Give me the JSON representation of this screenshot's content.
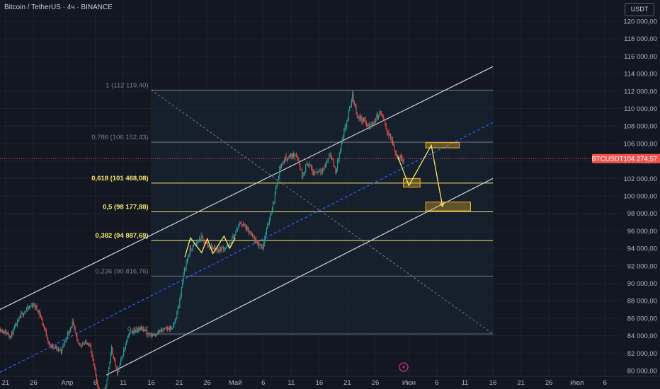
{
  "header": {
    "title": "Bitcoin / TetherUS · 4ч · BINANCE",
    "currency_button": "USDT"
  },
  "colors": {
    "background": "#131722",
    "up": "#26a69a",
    "down": "#ef5350",
    "channel": "#d1d4dc",
    "midline": "#2962ff",
    "fib_gray": "#787b86",
    "fib_yellow": "#f5e86b",
    "zone": "#f0b429",
    "price_tag": "#ef5350"
  },
  "chart_data": {
    "type": "candlestick",
    "symbol": "BTCUSDT",
    "timeframe": "4ч",
    "y_unit": "USDT",
    "ylim": [
      79800,
      121000
    ],
    "y_ticks": [
      80000,
      82000,
      84000,
      86000,
      88000,
      90000,
      92000,
      94000,
      96000,
      98000,
      100000,
      102000,
      104000,
      106000,
      108000,
      110000,
      112000,
      114000,
      116000,
      118000,
      120000
    ],
    "y_tick_labels": [
      "80 000,00",
      "82 000,00",
      "84 000,00",
      "86 000,00",
      "88 000,00",
      "90 000,00",
      "92 000,00",
      "94 000,00",
      "96 000,00",
      "98 000,00",
      "100 000,00",
      "102 000,00",
      "104 000,00",
      "106 000,00",
      "108 000,00",
      "110 000,00",
      "112 000,00",
      "114 000,00",
      "116 000,00",
      "118 000,00",
      "120 000,00"
    ],
    "x_range": [
      "2025-03-20",
      "2025-07-09"
    ],
    "x_ticks": [
      {
        "date": "2025-03-21",
        "label": "21"
      },
      {
        "date": "2025-03-26",
        "label": "26"
      },
      {
        "date": "2025-04-01",
        "label": "Апр"
      },
      {
        "date": "2025-04-06",
        "label": "6"
      },
      {
        "date": "2025-04-11",
        "label": "11"
      },
      {
        "date": "2025-04-16",
        "label": "16"
      },
      {
        "date": "2025-04-21",
        "label": "21"
      },
      {
        "date": "2025-04-26",
        "label": "26"
      },
      {
        "date": "2025-05-01",
        "label": "Май"
      },
      {
        "date": "2025-05-06",
        "label": "6"
      },
      {
        "date": "2025-05-11",
        "label": "11"
      },
      {
        "date": "2025-05-16",
        "label": "16"
      },
      {
        "date": "2025-05-21",
        "label": "21"
      },
      {
        "date": "2025-05-26",
        "label": "26"
      },
      {
        "date": "2025-06-01",
        "label": "Июн"
      },
      {
        "date": "2025-06-06",
        "label": "6"
      },
      {
        "date": "2025-06-11",
        "label": "11"
      },
      {
        "date": "2025-06-16",
        "label": "16"
      },
      {
        "date": "2025-06-21",
        "label": "21"
      },
      {
        "date": "2025-06-26",
        "label": "26"
      },
      {
        "date": "2025-07-01",
        "label": "Июл"
      },
      {
        "date": "2025-07-06",
        "label": "6"
      }
    ],
    "price_path": [
      [
        "2025-03-20",
        84800
      ],
      [
        "2025-03-22",
        84000
      ],
      [
        "2025-03-24",
        86500
      ],
      [
        "2025-03-26",
        87600
      ],
      [
        "2025-03-27",
        86800
      ],
      [
        "2025-03-29",
        82800
      ],
      [
        "2025-03-31",
        82300
      ],
      [
        "2025-04-02",
        85500
      ],
      [
        "2025-04-03",
        83000
      ],
      [
        "2025-04-05",
        83200
      ],
      [
        "2025-04-07",
        76800
      ],
      [
        "2025-04-08",
        78200
      ],
      [
        "2025-04-09",
        82500
      ],
      [
        "2025-04-10",
        79600
      ],
      [
        "2025-04-12",
        84200
      ],
      [
        "2025-04-14",
        84900
      ],
      [
        "2025-04-16",
        84000
      ],
      [
        "2025-04-18",
        84600
      ],
      [
        "2025-04-20",
        85000
      ],
      [
        "2025-04-21",
        87400
      ],
      [
        "2025-04-22",
        91600
      ],
      [
        "2025-04-23",
        93800
      ],
      [
        "2025-04-25",
        95200
      ],
      [
        "2025-04-26",
        94400
      ],
      [
        "2025-04-28",
        93800
      ],
      [
        "2025-04-30",
        94300
      ],
      [
        "2025-05-02",
        97000
      ],
      [
        "2025-05-03",
        96300
      ],
      [
        "2025-05-05",
        94500
      ],
      [
        "2025-05-06",
        94200
      ],
      [
        "2025-05-07",
        97000
      ],
      [
        "2025-05-08",
        99500
      ],
      [
        "2025-05-09",
        103200
      ],
      [
        "2025-05-10",
        104300
      ],
      [
        "2025-05-12",
        104800
      ],
      [
        "2025-05-13",
        102400
      ],
      [
        "2025-05-14",
        103800
      ],
      [
        "2025-05-15",
        102600
      ],
      [
        "2025-05-17",
        103200
      ],
      [
        "2025-05-18",
        104900
      ],
      [
        "2025-05-19",
        102800
      ],
      [
        "2025-05-20",
        105800
      ],
      [
        "2025-05-21",
        108500
      ],
      [
        "2025-05-22",
        111400
      ],
      [
        "2025-05-23",
        109000
      ],
      [
        "2025-05-24",
        108700
      ],
      [
        "2025-05-25",
        107800
      ],
      [
        "2025-05-27",
        109600
      ],
      [
        "2025-05-28",
        107800
      ],
      [
        "2025-05-29",
        106300
      ],
      [
        "2025-05-30",
        104500
      ],
      [
        "2025-05-31",
        104274.57
      ]
    ],
    "last_price": 104274.57,
    "last_price_label": "104 274,57",
    "symbol_tag": "BTCUSDT",
    "fibonacci": [
      {
        "ratio": "1",
        "price": 112119.4,
        "label": "1 (112 119,40)",
        "emphasis": false
      },
      {
        "ratio": "0,786",
        "price": 106152.43,
        "label": "0,786 (106 152,43)",
        "emphasis": false
      },
      {
        "ratio": "0,618",
        "price": 101468.08,
        "label": "0,618 (101 468,08)",
        "emphasis": true
      },
      {
        "ratio": "0,5",
        "price": 98177.88,
        "label": "0,5 (98 177,88)",
        "emphasis": true
      },
      {
        "ratio": "0,382",
        "price": 94887.69,
        "label": "0,382 (94 887,69)",
        "emphasis": true
      },
      {
        "ratio": "0,236",
        "price": 90816.76,
        "label": "0,236 (90 816,76)",
        "emphasis": false
      },
      {
        "ratio": "0",
        "price": 84200,
        "label": "0 (84 2",
        "emphasis": false
      }
    ],
    "fib_x_range": [
      "2025-04-16",
      "2025-06-16"
    ],
    "fib_diagonal": [
      [
        "2025-04-16",
        112119.4
      ],
      [
        "2025-06-16",
        84200
      ]
    ],
    "channel": {
      "upper": [
        [
          "2025-03-20",
          87000
        ],
        [
          "2025-06-16",
          114800
        ]
      ],
      "lower": [
        [
          "2025-04-08",
          79500
        ],
        [
          "2025-06-16",
          102000
        ]
      ],
      "mid": [
        [
          "2025-03-20",
          79800
        ],
        [
          "2025-06-16",
          108400
        ]
      ]
    },
    "zones": [
      {
        "x": [
          "2025-06-04",
          "2025-06-10"
        ],
        "y": [
          105500,
          106100
        ]
      },
      {
        "x": [
          "2025-05-31",
          "2025-06-03"
        ],
        "y": [
          101000,
          102000
        ]
      },
      {
        "x": [
          "2025-06-04",
          "2025-06-12"
        ],
        "y": [
          98300,
          99300
        ]
      }
    ],
    "projection": [
      [
        "2025-05-30",
        104500
      ],
      [
        "2025-06-01",
        101200
      ],
      [
        "2025-06-05",
        105800
      ],
      [
        "2025-06-07",
        98800
      ]
    ],
    "zigzag": [
      [
        "2025-04-22",
        93000
      ],
      [
        "2025-04-23",
        95200
      ],
      [
        "2025-04-25",
        93500
      ],
      [
        "2025-04-26",
        95100
      ],
      [
        "2025-04-27",
        93400
      ],
      [
        "2025-04-29",
        95400
      ],
      [
        "2025-04-30",
        94000
      ],
      [
        "2025-05-01",
        95200
      ]
    ]
  }
}
